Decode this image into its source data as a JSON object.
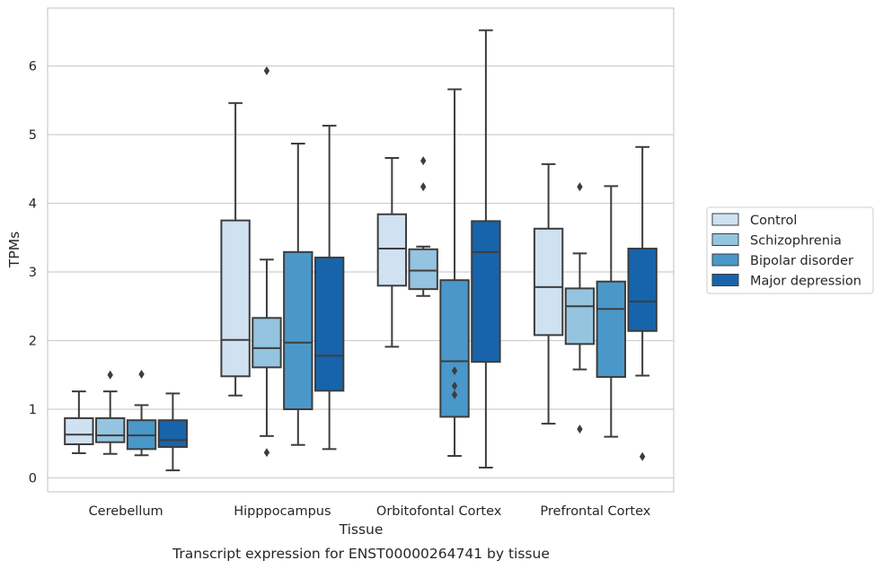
{
  "caption": "Transcript expression for ENST00000264741 by tissue",
  "colors": {
    "Control": "#d0e1f2",
    "Schizophrenia": "#94c4df",
    "Bipolar disorder": "#4a98c9",
    "Major depression": "#1764ab",
    "edge": "#3d3d3d",
    "grid": "#cfcfcf"
  },
  "chart_data": {
    "type": "box",
    "title": "",
    "xlabel": "Tissue",
    "ylabel": "TPMs",
    "ylim": [
      -0.2,
      6.85
    ],
    "yticks": [
      0,
      1,
      2,
      3,
      4,
      5,
      6
    ],
    "grid": "horizontal",
    "legend_position": "right, outside",
    "categories": [
      "Cerebellum",
      "Hipppocampus",
      "Orbitofontal Cortex",
      "Prefrontal Cortex"
    ],
    "series": [
      {
        "name": "Control",
        "boxes": [
          {
            "whislo": 0.36,
            "q1": 0.49,
            "med": 0.63,
            "q3": 0.87,
            "whishi": 1.26,
            "fliers": []
          },
          {
            "whislo": 1.2,
            "q1": 1.48,
            "med": 2.01,
            "q3": 3.75,
            "whishi": 5.46,
            "fliers": []
          },
          {
            "whislo": 1.91,
            "q1": 2.8,
            "med": 3.34,
            "q3": 3.84,
            "whishi": 4.66,
            "fliers": []
          },
          {
            "whislo": 0.79,
            "q1": 2.08,
            "med": 2.78,
            "q3": 3.63,
            "whishi": 4.57,
            "fliers": []
          }
        ]
      },
      {
        "name": "Schizophrenia",
        "boxes": [
          {
            "whislo": 0.35,
            "q1": 0.52,
            "med": 0.62,
            "q3": 0.87,
            "whishi": 1.26,
            "fliers": [
              1.5
            ]
          },
          {
            "whislo": 0.61,
            "q1": 1.61,
            "med": 1.89,
            "q3": 2.33,
            "whishi": 3.18,
            "fliers": [
              0.37,
              5.93
            ]
          },
          {
            "whislo": 2.65,
            "q1": 2.75,
            "med": 3.02,
            "q3": 3.33,
            "whishi": 3.37,
            "fliers": [
              4.24,
              4.62
            ]
          },
          {
            "whislo": 1.58,
            "q1": 1.95,
            "med": 2.5,
            "q3": 2.76,
            "whishi": 3.27,
            "fliers": [
              0.71,
              4.24
            ]
          }
        ]
      },
      {
        "name": "Bipolar disorder",
        "boxes": [
          {
            "whislo": 0.33,
            "q1": 0.42,
            "med": 0.62,
            "q3": 0.84,
            "whishi": 1.06,
            "fliers": [
              1.51
            ]
          },
          {
            "whislo": 0.48,
            "q1": 1.0,
            "med": 1.97,
            "q3": 3.29,
            "whishi": 4.87,
            "fliers": []
          },
          {
            "whislo": 0.32,
            "q1": 0.89,
            "med": 1.7,
            "q3": 2.88,
            "whishi": 5.66,
            "fliers": [
              1.21,
              1.34,
              1.56
            ]
          },
          {
            "whislo": 0.6,
            "q1": 1.47,
            "med": 2.46,
            "q3": 2.86,
            "whishi": 4.25,
            "fliers": []
          }
        ]
      },
      {
        "name": "Major depression",
        "boxes": [
          {
            "whislo": 0.11,
            "q1": 0.45,
            "med": 0.55,
            "q3": 0.84,
            "whishi": 1.23,
            "fliers": []
          },
          {
            "whislo": 0.42,
            "q1": 1.27,
            "med": 1.78,
            "q3": 3.21,
            "whishi": 5.13,
            "fliers": []
          },
          {
            "whislo": 0.15,
            "q1": 1.69,
            "med": 3.29,
            "q3": 3.74,
            "whishi": 6.52,
            "fliers": []
          },
          {
            "whislo": 1.49,
            "q1": 2.14,
            "med": 2.57,
            "q3": 3.34,
            "whishi": 4.82,
            "fliers": [
              0.31
            ]
          }
        ]
      }
    ]
  }
}
